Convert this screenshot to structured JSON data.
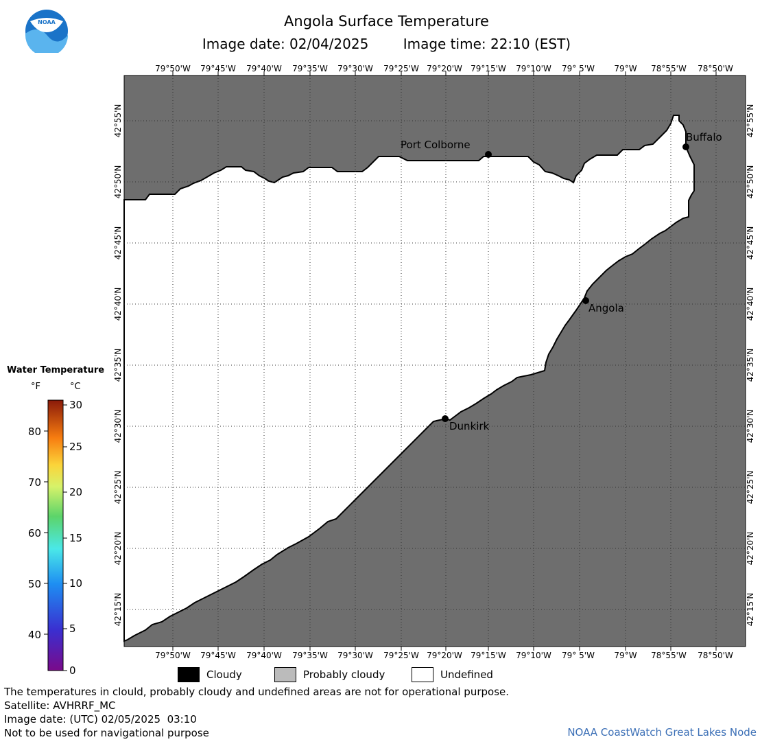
{
  "header": {
    "title": "Angola Surface Temperature",
    "image_date": "Image date: 02/04/2025",
    "image_time": "Image time: 22:10 (EST)"
  },
  "logo": {
    "text": "NOAA"
  },
  "map": {
    "lon_labels": [
      "79°50'W",
      "79°45'W",
      "79°40'W",
      "79°35'W",
      "79°30'W",
      "79°25'W",
      "79°20'W",
      "79°15'W",
      "79°10'W",
      "79° 5'W",
      "79°W",
      "78°55'W",
      "78°50'W"
    ],
    "lat_labels": [
      "42°55'N",
      "42°50'N",
      "42°45'N",
      "42°40'N",
      "42°35'N",
      "42°30'N",
      "42°25'N",
      "42°20'N",
      "42°15'N"
    ],
    "cities": [
      {
        "name": "Port Colborne"
      },
      {
        "name": "Buffalo"
      },
      {
        "name": "Angola"
      },
      {
        "name": "Dunkirk"
      }
    ],
    "colors": {
      "land": "#6e6e6e",
      "lake": "#ffffff",
      "grid": "#000000"
    }
  },
  "legend": {
    "title": "Water Temperature",
    "unit_f": "°F",
    "unit_c": "°C",
    "f_ticks": [
      "80",
      "70",
      "60",
      "50",
      "40"
    ],
    "c_ticks": [
      "30",
      "25",
      "20",
      "15",
      "10",
      "5",
      "0"
    ]
  },
  "key": {
    "cloudy": "Cloudy",
    "probably_cloudy": "Probably cloudy",
    "undefined": "Undefined",
    "colors": {
      "cloudy": "#000000",
      "probably_cloudy": "#bbbbbb",
      "undefined": "#ffffff"
    }
  },
  "footer": {
    "disclaimer": "The temperatures in clould, probably cloudy and undefined areas are not for operational purpose.",
    "satellite": "Satellite: AVHRRF_MC",
    "utc_date": "Image date: (UTC) 02/05/2025  03:10",
    "nav_note": "Not to be used for navigational purpose",
    "credit": "NOAA CoastWatch Great Lakes Node"
  }
}
